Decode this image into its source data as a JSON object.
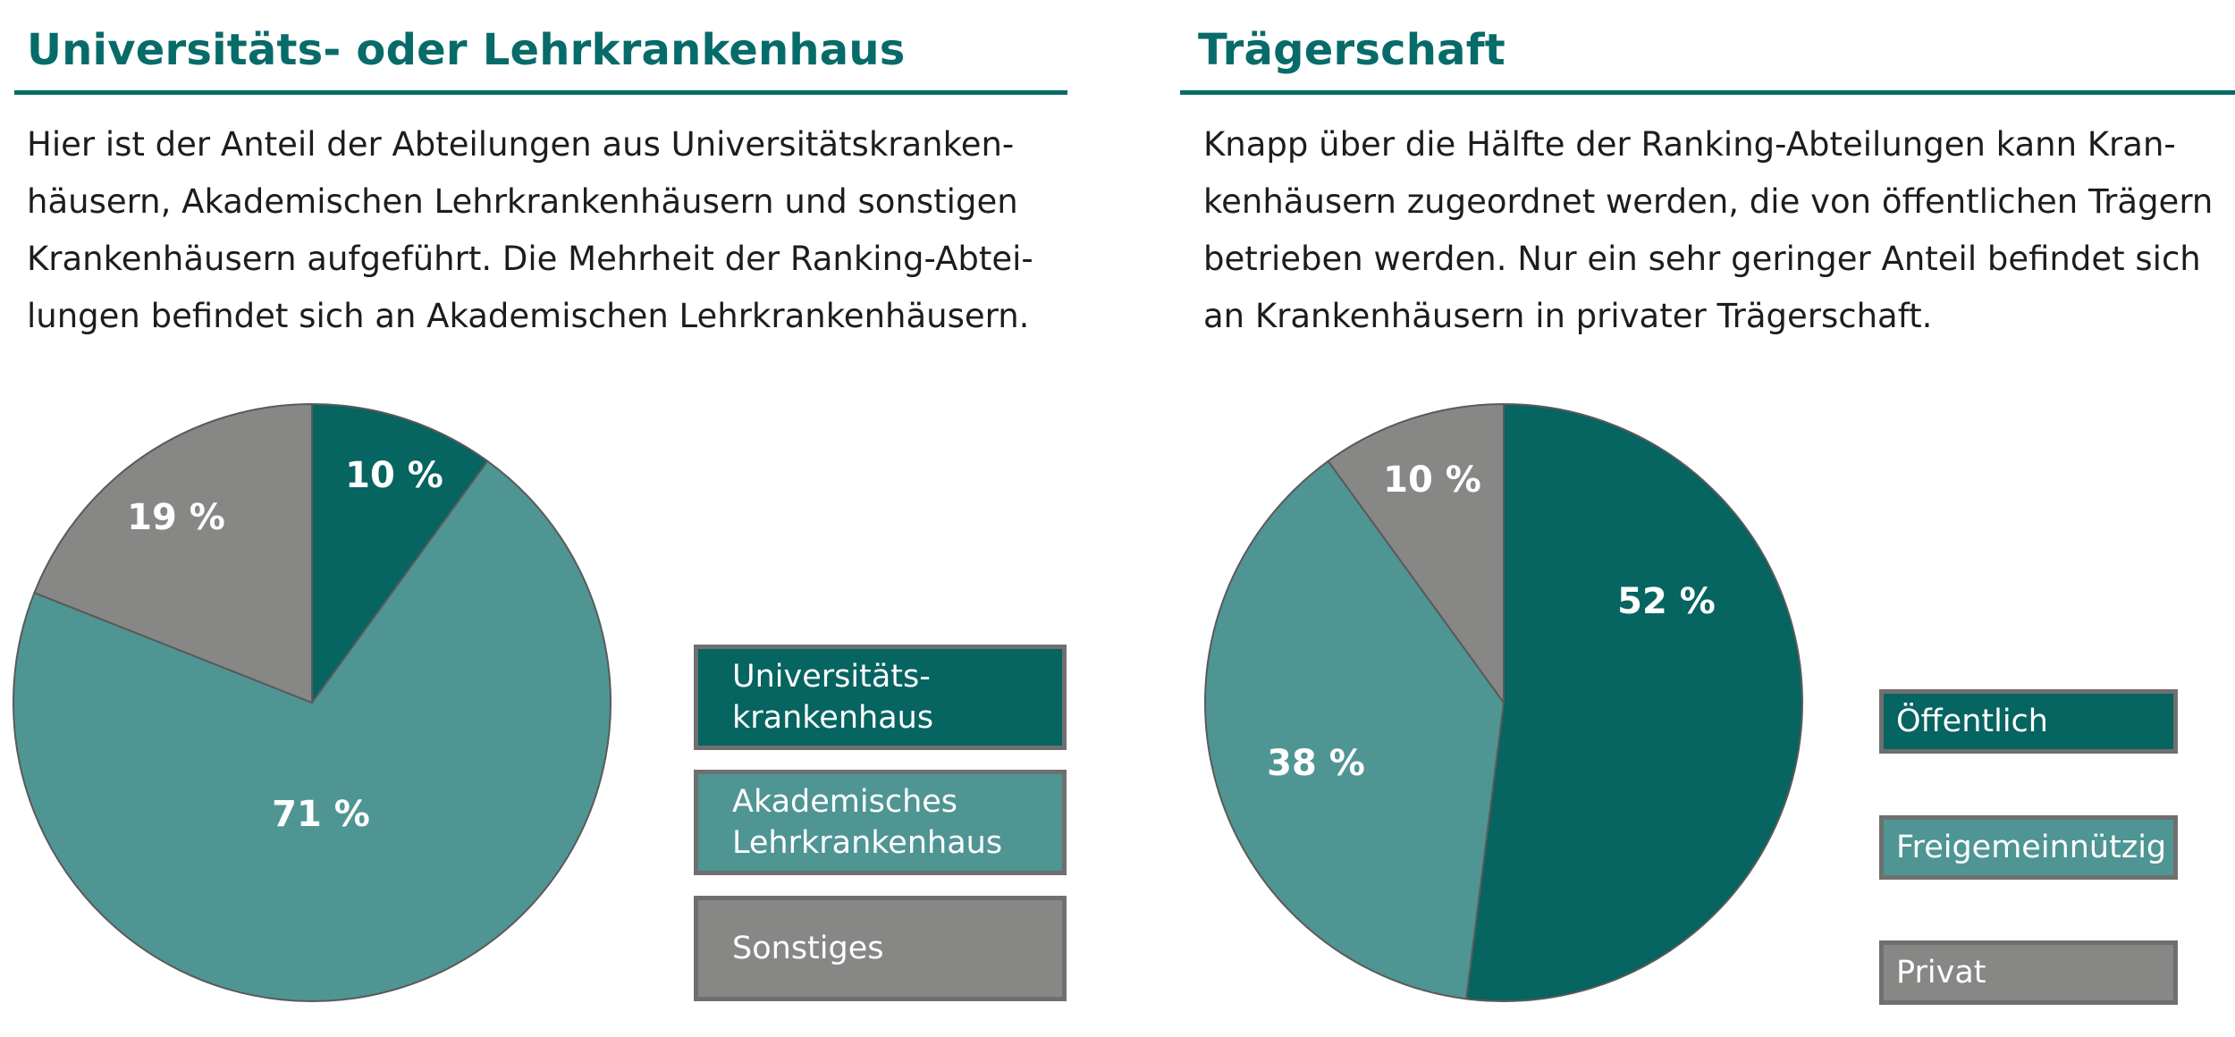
{
  "colors": {
    "title": "#076b69",
    "dark_teal": "#066461",
    "light_teal": "#4f9594",
    "gray": "#878786",
    "legend_border": "#6f6f6f"
  },
  "left": {
    "title": "Universitäts- oder Lehrkrankenhaus",
    "description_lines": [
      "Hier ist der Anteil der Abteilungen aus Universitätskranken-",
      "häusern, Akademischen Lehrkrankenhäusern und sonstigen",
      "Krankenhäusern aufgeführt. Die Mehrheit der Ranking-Abtei-",
      "lungen befindet sich an Akademischen Lehrkrankenhäusern."
    ],
    "legend": [
      {
        "lines": [
          "Universitäts-",
          "krankenhaus"
        ],
        "color": "#066461"
      },
      {
        "lines": [
          "Akademisches",
          "Lehrkrankenhaus"
        ],
        "color": "#4f9594"
      },
      {
        "lines": [
          "Sonstiges"
        ],
        "color": "#878786"
      }
    ]
  },
  "right": {
    "title": "Trägerschaft",
    "description_lines": [
      "Knapp über die Hälfte der Ranking-Abteilungen kann Kran-",
      "kenhäusern zugeordnet werden, die von öffentlichen Trägern",
      "betrieben werden. Nur ein sehr geringer Anteil befindet sich",
      "an Krankenhäusern in privater Trägerschaft."
    ],
    "legend": [
      {
        "lines": [
          "Öffentlich"
        ],
        "color": "#066461"
      },
      {
        "lines": [
          "Freigemeinnützig"
        ],
        "color": "#4f9594"
      },
      {
        "lines": [
          "Privat"
        ],
        "color": "#878786"
      }
    ]
  },
  "chart_data": [
    {
      "type": "pie",
      "title": "Universitäts- oder Lehrkrankenhaus",
      "categories": [
        "Universitätskrankenhaus",
        "Akademisches Lehrkrankenhaus",
        "Sonstiges"
      ],
      "values": [
        10,
        71,
        19
      ],
      "labels": [
        "10 %",
        "71 %",
        "19 %"
      ],
      "colors": [
        "#066461",
        "#4f9594",
        "#878786"
      ],
      "legend_position": "right"
    },
    {
      "type": "pie",
      "title": "Trägerschaft",
      "categories": [
        "Öffentlich",
        "Freigemeinnützig",
        "Privat"
      ],
      "values": [
        52,
        38,
        10
      ],
      "labels": [
        "52 %",
        "38 %",
        "10 %"
      ],
      "colors": [
        "#066461",
        "#4f9594",
        "#878786"
      ],
      "legend_position": "right"
    }
  ]
}
